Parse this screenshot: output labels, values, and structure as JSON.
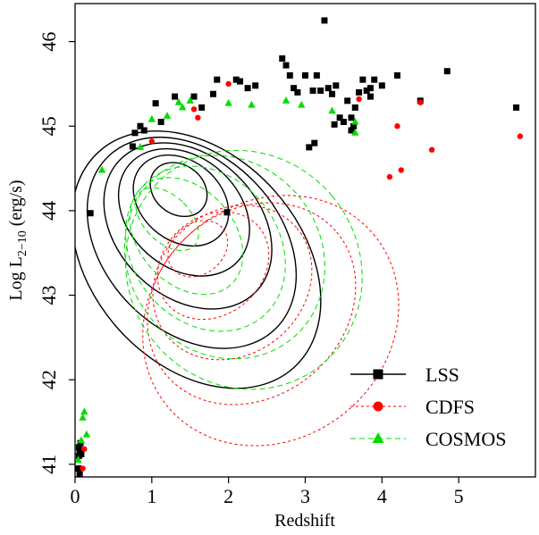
{
  "chart_data": {
    "type": "scatter",
    "xlabel": "Redshift",
    "ylabel": {
      "prefix": "Log L",
      "subscript": "2−10",
      "suffix": " (erg/s)"
    },
    "xlim": [
      0,
      6.0
    ],
    "ylim": [
      40.85,
      46.45
    ],
    "x_ticks": [
      0,
      1,
      2,
      3,
      4,
      5
    ],
    "y_ticks": [
      41,
      42,
      43,
      44,
      45,
      46
    ],
    "grid": false,
    "legend_position": "bottom-right",
    "series": [
      {
        "name": "LSS",
        "color": "#000000",
        "marker": "square",
        "line": "solid",
        "points": [
          [
            0.05,
            41.2
          ],
          [
            0.06,
            41.15
          ],
          [
            0.05,
            41.1
          ],
          [
            0.07,
            41.25
          ],
          [
            0.06,
            40.88
          ],
          [
            0.04,
            40.95
          ],
          [
            0.08,
            41.12
          ],
          [
            0.2,
            43.97
          ],
          [
            0.75,
            44.76
          ],
          [
            0.78,
            44.92
          ],
          [
            0.85,
            45.0
          ],
          [
            0.9,
            44.95
          ],
          [
            1.05,
            45.27
          ],
          [
            1.12,
            45.05
          ],
          [
            1.3,
            45.35
          ],
          [
            1.55,
            45.35
          ],
          [
            1.65,
            45.22
          ],
          [
            1.8,
            45.38
          ],
          [
            1.85,
            45.55
          ],
          [
            2.1,
            45.55
          ],
          [
            2.15,
            45.53
          ],
          [
            2.25,
            45.45
          ],
          [
            2.35,
            45.48
          ],
          [
            1.98,
            43.98
          ],
          [
            2.7,
            45.8
          ],
          [
            2.75,
            45.72
          ],
          [
            2.8,
            45.6
          ],
          [
            2.85,
            45.45
          ],
          [
            2.9,
            45.4
          ],
          [
            3.0,
            45.6
          ],
          [
            3.1,
            45.42
          ],
          [
            3.15,
            45.6
          ],
          [
            3.25,
            46.25
          ],
          [
            3.3,
            45.45
          ],
          [
            3.35,
            45.38
          ],
          [
            3.4,
            45.48
          ],
          [
            3.45,
            45.1
          ],
          [
            3.5,
            45.05
          ],
          [
            3.55,
            45.3
          ],
          [
            3.6,
            45.1
          ],
          [
            3.65,
            45.22
          ],
          [
            3.7,
            45.4
          ],
          [
            3.75,
            45.55
          ],
          [
            3.8,
            45.42
          ],
          [
            3.85,
            45.35
          ],
          [
            3.9,
            45.55
          ],
          [
            4.0,
            45.48
          ],
          [
            4.2,
            45.6
          ],
          [
            3.05,
            44.75
          ],
          [
            3.12,
            44.8
          ],
          [
            3.38,
            45.02
          ],
          [
            3.6,
            44.95
          ],
          [
            4.5,
            45.3
          ],
          [
            4.85,
            45.65
          ],
          [
            5.75,
            45.22
          ],
          [
            3.2,
            45.42
          ],
          [
            3.85,
            45.45
          ],
          [
            3.63,
            45.0
          ]
        ]
      },
      {
        "name": "CDFS",
        "color": "#ff0000",
        "marker": "circle",
        "line": "dashed",
        "points": [
          [
            0.1,
            40.95
          ],
          [
            0.12,
            41.18
          ],
          [
            1.0,
            44.82
          ],
          [
            1.55,
            45.2
          ],
          [
            1.6,
            45.1
          ],
          [
            2.0,
            45.5
          ],
          [
            3.7,
            45.32
          ],
          [
            4.1,
            44.4
          ],
          [
            4.2,
            45.0
          ],
          [
            4.25,
            44.48
          ],
          [
            4.5,
            45.28
          ],
          [
            4.65,
            44.72
          ],
          [
            5.8,
            44.88
          ]
        ]
      },
      {
        "name": "COSMOS",
        "color": "#00dd00",
        "marker": "triangle",
        "line": "longdash",
        "points": [
          [
            0.04,
            41.05
          ],
          [
            0.08,
            41.28
          ],
          [
            0.1,
            41.55
          ],
          [
            0.12,
            41.62
          ],
          [
            0.15,
            41.35
          ],
          [
            0.35,
            44.48
          ],
          [
            0.85,
            44.75
          ],
          [
            1.0,
            45.08
          ],
          [
            1.2,
            45.12
          ],
          [
            1.35,
            45.28
          ],
          [
            1.4,
            45.22
          ],
          [
            1.5,
            45.3
          ],
          [
            2.0,
            45.27
          ],
          [
            2.3,
            45.25
          ],
          [
            2.75,
            45.3
          ],
          [
            2.95,
            45.25
          ],
          [
            3.35,
            45.18
          ],
          [
            3.65,
            44.92
          ],
          [
            3.65,
            45.05
          ]
        ]
      }
    ],
    "contours": {
      "LSS": [
        {
          "cx": 1.35,
          "cy": 44.25,
          "rx": 0.32,
          "ry": 0.36,
          "rot": -52
        },
        {
          "cx": 1.38,
          "cy": 44.12,
          "rx": 0.52,
          "ry": 0.62,
          "rot": -50
        },
        {
          "cx": 1.42,
          "cy": 43.98,
          "rx": 0.72,
          "ry": 0.86,
          "rot": -48
        },
        {
          "cx": 1.47,
          "cy": 43.82,
          "rx": 0.92,
          "ry": 1.12,
          "rot": -46
        },
        {
          "cx": 1.52,
          "cy": 43.62,
          "rx": 1.14,
          "ry": 1.42,
          "rot": -44
        },
        {
          "cx": 1.58,
          "cy": 43.42,
          "rx": 1.36,
          "ry": 1.72,
          "rot": -42
        }
      ],
      "CDFS": [
        {
          "cx": 1.6,
          "cy": 43.55,
          "rx": 0.42,
          "ry": 0.3,
          "rot": -38
        },
        {
          "cx": 1.8,
          "cy": 43.35,
          "rx": 0.78,
          "ry": 0.58,
          "rot": -40
        },
        {
          "cx": 2.05,
          "cy": 43.15,
          "rx": 1.1,
          "ry": 0.85,
          "rot": -40
        },
        {
          "cx": 2.3,
          "cy": 42.9,
          "rx": 1.45,
          "ry": 1.1,
          "rot": -40
        },
        {
          "cx": 2.55,
          "cy": 42.7,
          "rx": 1.75,
          "ry": 1.4,
          "rot": -40
        }
      ],
      "COSMOS": [
        {
          "cx": 1.2,
          "cy": 43.9,
          "rx": 0.3,
          "ry": 0.45,
          "rot": -45
        },
        {
          "cx": 1.45,
          "cy": 43.7,
          "rx": 0.62,
          "ry": 0.78,
          "rot": -42
        },
        {
          "cx": 1.7,
          "cy": 43.55,
          "rx": 0.95,
          "ry": 1.05,
          "rot": -40
        },
        {
          "cx": 1.95,
          "cy": 43.45,
          "rx": 1.25,
          "ry": 1.25,
          "rot": -40
        },
        {
          "cx": 2.2,
          "cy": 43.3,
          "rx": 1.5,
          "ry": 1.45,
          "rot": -40
        }
      ]
    }
  }
}
